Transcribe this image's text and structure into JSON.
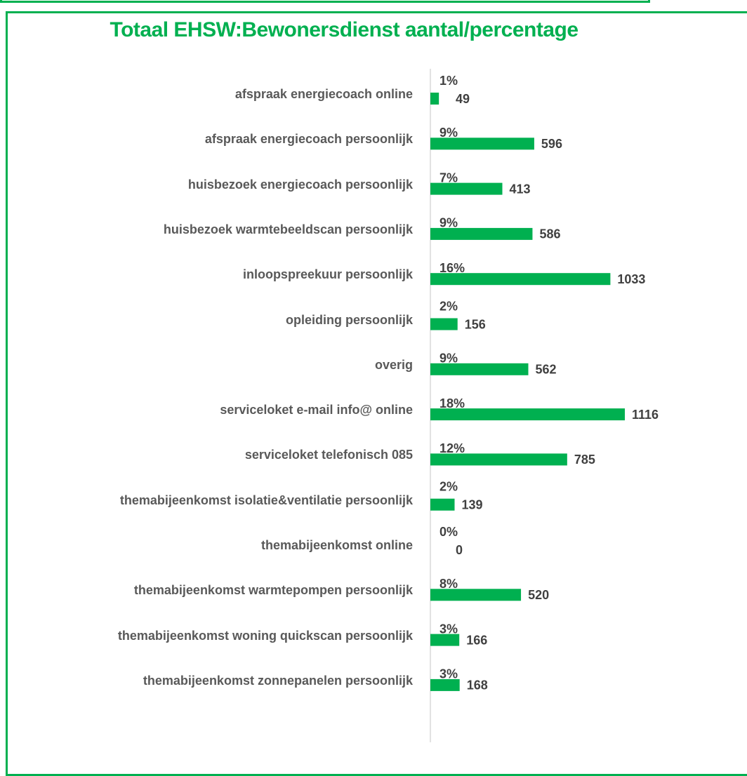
{
  "chart_data": {
    "type": "bar",
    "orientation": "horizontal",
    "title": "Totaal EHSW:Bewonersdienst aantal/percentage",
    "categories": [
      "afspraak energiecoach online",
      "afspraak energiecoach persoonlijk",
      "huisbezoek energiecoach persoonlijk",
      "huisbezoek warmtebeeldscan persoonlijk",
      "inloopspreekuur persoonlijk",
      "opleiding persoonlijk",
      "overig",
      "serviceloket e-mail info@ online",
      "serviceloket telefonisch 085",
      "themabijeenkomst isolatie&ventilatie persoonlijk",
      "themabijeenkomst online",
      "themabijeenkomst warmtepompen persoonlijk",
      "themabijeenkomst woning quickscan persoonlijk",
      "themabijeenkomst zonnepanelen persoonlijk"
    ],
    "values": [
      49,
      596,
      413,
      586,
      1033,
      156,
      562,
      1116,
      785,
      139,
      0,
      520,
      166,
      168
    ],
    "percent_labels": [
      "1%",
      "9%",
      "7%",
      "9%",
      "16%",
      "2%",
      "9%",
      "18%",
      "12%",
      "2%",
      "0%",
      "8%",
      "3%",
      "3%"
    ],
    "color": "#00b050"
  }
}
